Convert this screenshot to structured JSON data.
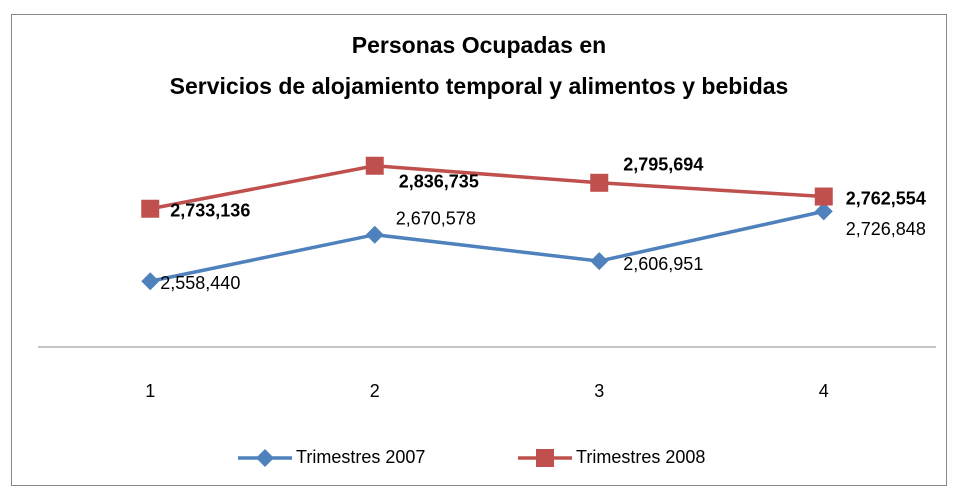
{
  "chart_data": {
    "type": "line",
    "title": [
      "Personas Ocupadas en",
      "Servicios de alojamiento temporal y alimentos y bebidas"
    ],
    "categories": [
      1,
      2,
      3,
      4
    ],
    "ylim": [
      2400000,
      3000000
    ],
    "legend": "bottom",
    "series": [
      {
        "name": "Trimestres 2007",
        "color": "#4f81bd",
        "marker": "diamond",
        "values": [
          2558440,
          2670578,
          2606951,
          2726848
        ],
        "value_labels": [
          "2,558,440",
          "2,670,578",
          "2,606,951",
          "2,726,848"
        ]
      },
      {
        "name": "Trimestres 2008",
        "color": "#c0504d",
        "marker": "square",
        "label_bold": true,
        "values": [
          2733136,
          2836735,
          2795694,
          2762554
        ],
        "value_labels": [
          "2,733,136",
          "2,836,735",
          "2,795,694",
          "2,762,554"
        ]
      }
    ]
  }
}
